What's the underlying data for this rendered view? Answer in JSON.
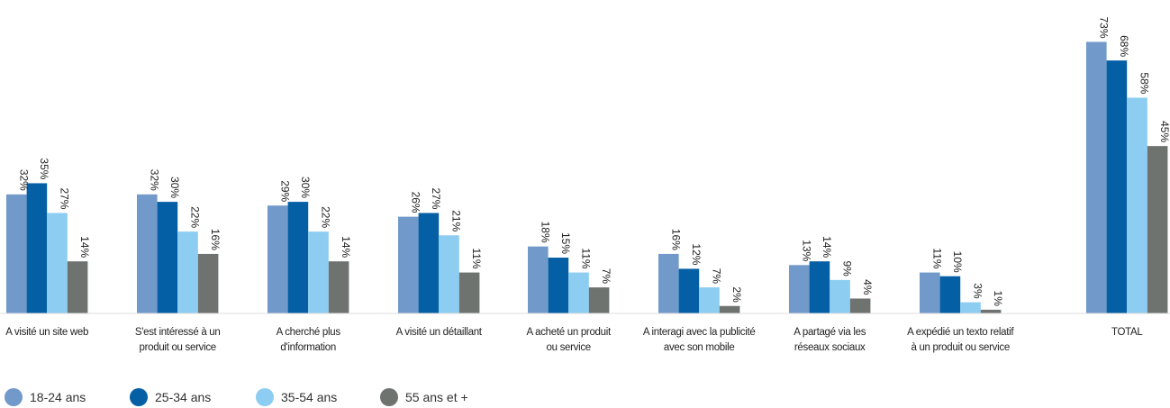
{
  "chart_data": {
    "type": "bar",
    "title": "",
    "xlabel": "",
    "ylabel": "",
    "ylim": [
      0,
      80
    ],
    "grid": false,
    "legend_position": "bottom-left",
    "value_suffix": "%",
    "categories": [
      [
        "A visité un site web"
      ],
      [
        "S'est intéressé à un",
        "produit ou service"
      ],
      [
        "A cherché plus",
        "d'information"
      ],
      [
        "A visité un détaillant"
      ],
      [
        "A acheté un produit",
        "ou service"
      ],
      [
        "A interagi avec la publicité",
        "avec son mobile"
      ],
      [
        "A partagé via les",
        "réseaux sociaux"
      ],
      [
        "A expédié un texto relatif",
        "à un produit ou service"
      ],
      [
        "TOTAL"
      ]
    ],
    "series": [
      {
        "name": "18-24 ans",
        "color": "#7199c9",
        "values": [
          32,
          32,
          29,
          26,
          18,
          16,
          13,
          11,
          73
        ]
      },
      {
        "name": "25-34 ans",
        "color": "#045fa5",
        "values": [
          35,
          30,
          30,
          27,
          15,
          12,
          14,
          10,
          68
        ]
      },
      {
        "name": "35-54 ans",
        "color": "#8ccdf1",
        "values": [
          27,
          22,
          22,
          21,
          11,
          7,
          9,
          3,
          58
        ]
      },
      {
        "name": "55 ans et +",
        "color": "#6e7370",
        "values": [
          14,
          16,
          14,
          11,
          7,
          2,
          4,
          1,
          45
        ]
      }
    ]
  }
}
